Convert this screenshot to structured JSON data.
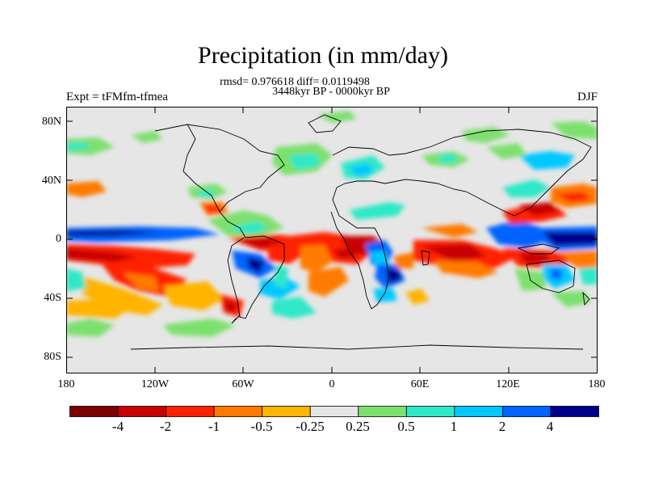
{
  "title": "Precipitation (in mm/day)",
  "subtitle_line1": "rmsd= 0.976618 diff= 0.0119498",
  "subtitle_line2": "3448kyr BP - 0000kyr BP",
  "left_label": "Expt = tFMfm-tfmea",
  "right_label": "DJF",
  "y_ticks": [
    "80N",
    "40N",
    "0",
    "40S",
    "80S"
  ],
  "x_ticks": [
    "180",
    "120W",
    "60W",
    "0",
    "60E",
    "120E",
    "180"
  ],
  "colorbar": {
    "colors": [
      "#7a0000",
      "#c80000",
      "#ff2200",
      "#ff7a00",
      "#ffb400",
      "#e6e6e6",
      "#7de06e",
      "#2ee8c8",
      "#00c8ff",
      "#0064ff",
      "#00008c"
    ],
    "labels": [
      "-4",
      "-2",
      "-1",
      "-0.5",
      "-0.25",
      "0.25",
      "0.5",
      "1",
      "2",
      "4"
    ]
  }
}
